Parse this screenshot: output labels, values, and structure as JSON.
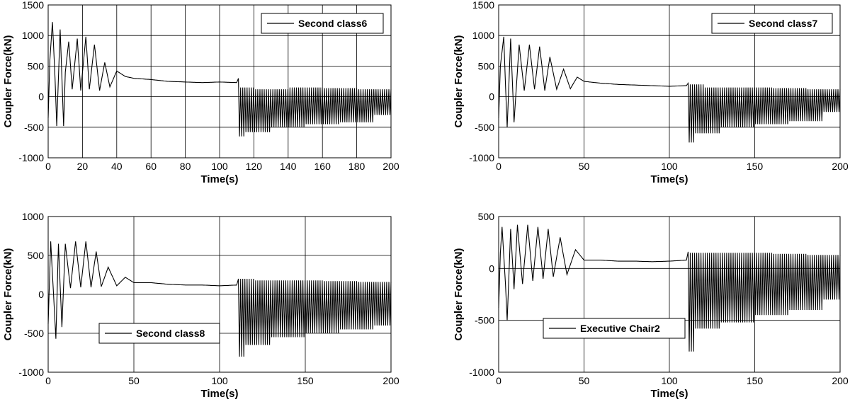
{
  "chart_data": [
    {
      "type": "line",
      "xlabel": "Time(s)",
      "ylabel": "Coupler Force(kN)",
      "xlim": [
        0,
        200
      ],
      "ylim": [
        -1000,
        1500
      ],
      "xticks": [
        0,
        20,
        40,
        60,
        80,
        100,
        120,
        140,
        160,
        180,
        200
      ],
      "yticks": [
        -1000,
        -500,
        0,
        500,
        1000,
        1500
      ],
      "grid": true,
      "legend_position": "top-right",
      "series": [
        {
          "name": "Second class6",
          "color": "#000000",
          "x": [
            0,
            1,
            2.5,
            4,
            5,
            7,
            9,
            10,
            12,
            14,
            17,
            19,
            22,
            24,
            27,
            30,
            33,
            36,
            40,
            45,
            50,
            60,
            70,
            80,
            90,
            100,
            110,
            111,
            112,
            115,
            120,
            130,
            140,
            150,
            160,
            170,
            180,
            190,
            200
          ],
          "y": [
            -350,
            600,
            1220,
            300,
            -480,
            1100,
            -480,
            400,
            900,
            120,
            950,
            100,
            980,
            120,
            850,
            100,
            560,
            160,
            420,
            330,
            300,
            280,
            250,
            240,
            230,
            240,
            230,
            300,
            -650,
            150,
            -580,
            120,
            -500,
            150,
            -450,
            140,
            -420,
            120,
            -300
          ]
        }
      ]
    },
    {
      "type": "line",
      "xlabel": "Time(s)",
      "ylabel": "Coupler Force(kN)",
      "xlim": [
        0,
        200
      ],
      "ylim": [
        -1000,
        1500
      ],
      "xticks": [
        0,
        50,
        100,
        150,
        200
      ],
      "yticks": [
        -1000,
        -500,
        0,
        500,
        1000,
        1500
      ],
      "grid": true,
      "legend_position": "top-right",
      "series": [
        {
          "name": "Second class7",
          "color": "#000000",
          "x": [
            0,
            1,
            3,
            4,
            5,
            7,
            9,
            12,
            15,
            18,
            21,
            24,
            27,
            30,
            34,
            38,
            42,
            46,
            50,
            60,
            70,
            80,
            90,
            100,
            110,
            111,
            112,
            115,
            120,
            130,
            140,
            150,
            160,
            170,
            180,
            190,
            200
          ],
          "y": [
            -350,
            500,
            980,
            200,
            -500,
            950,
            -420,
            850,
            100,
            850,
            120,
            820,
            100,
            650,
            120,
            450,
            130,
            320,
            250,
            220,
            200,
            190,
            180,
            170,
            180,
            220,
            -750,
            200,
            -600,
            150,
            -500,
            150,
            -450,
            140,
            -400,
            120,
            -250
          ]
        }
      ]
    },
    {
      "type": "line",
      "xlabel": "Time(s)",
      "ylabel": "Coupler Force(kN)",
      "xlim": [
        0,
        200
      ],
      "ylim": [
        -1000,
        1000
      ],
      "xticks": [
        0,
        50,
        100,
        150,
        200
      ],
      "yticks": [
        -1000,
        -500,
        0,
        500,
        1000
      ],
      "grid": true,
      "legend_position": "bottom-left",
      "series": [
        {
          "name": "Second class8",
          "color": "#000000",
          "x": [
            0,
            1.5,
            3,
            4.5,
            6,
            8,
            10,
            13,
            16,
            19,
            22,
            25,
            28,
            31,
            35,
            40,
            45,
            50,
            60,
            70,
            80,
            90,
            100,
            110,
            111,
            112,
            115,
            120,
            130,
            140,
            150,
            160,
            170,
            180,
            190,
            200
          ],
          "y": [
            -380,
            680,
            50,
            -570,
            650,
            -420,
            650,
            80,
            680,
            90,
            680,
            90,
            550,
            100,
            350,
            110,
            220,
            150,
            150,
            130,
            120,
            120,
            110,
            120,
            200,
            -800,
            200,
            -650,
            180,
            -550,
            180,
            -500,
            170,
            -450,
            160,
            -400
          ]
        }
      ]
    },
    {
      "type": "line",
      "xlabel": "Time(s)",
      "ylabel": "Coupler Force(kN)",
      "xlim": [
        0,
        200
      ],
      "ylim": [
        -1000,
        500
      ],
      "xticks": [
        0,
        50,
        100,
        150,
        200
      ],
      "yticks": [
        -1000,
        -500,
        0,
        500
      ],
      "grid": true,
      "legend_position": "bottom-left",
      "series": [
        {
          "name": "Executive Chair2",
          "color": "#000000",
          "x": [
            0,
            1,
            2,
            4,
            5,
            7,
            9,
            11,
            14,
            17,
            20,
            23,
            26,
            29,
            32,
            36,
            40,
            45,
            50,
            60,
            70,
            80,
            90,
            100,
            110,
            111,
            112,
            115,
            120,
            130,
            140,
            150,
            160,
            170,
            180,
            190,
            200
          ],
          "y": [
            -380,
            150,
            400,
            -150,
            -500,
            380,
            -200,
            420,
            -150,
            420,
            -120,
            400,
            -100,
            380,
            -80,
            300,
            -60,
            180,
            80,
            80,
            70,
            70,
            65,
            70,
            80,
            160,
            -800,
            150,
            -580,
            150,
            -520,
            150,
            -450,
            140,
            -400,
            130,
            -300
          ]
        }
      ]
    }
  ]
}
